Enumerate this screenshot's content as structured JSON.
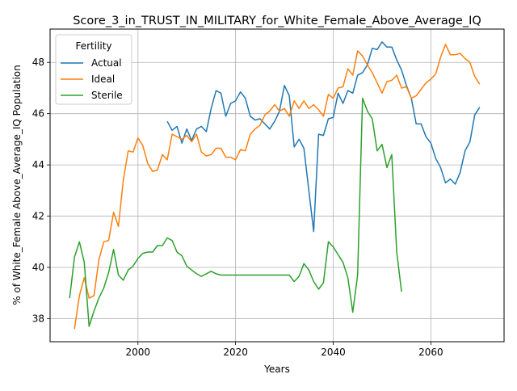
{
  "chart_data": {
    "type": "line",
    "title": "Score_3_in_TRUST_IN_MILITARY_for_White_Female_Above_Average_IQ",
    "xlabel": "Years",
    "ylabel": "% of White_Female Above_Average_IQ Population",
    "xlim": [
      1982,
      2075
    ],
    "ylim": [
      37.1,
      49.3
    ],
    "xticks": [
      2000,
      2020,
      2040,
      2060
    ],
    "yticks": [
      38,
      40,
      42,
      44,
      46,
      48
    ],
    "grid": true,
    "legend": {
      "title": "Fertility",
      "placement": "top-left"
    },
    "series": [
      {
        "name": "Actual",
        "color": "#1f77b4",
        "points": [
          [
            2006,
            45.7
          ],
          [
            2007,
            45.35
          ],
          [
            2008,
            45.5
          ],
          [
            2009,
            44.85
          ],
          [
            2010,
            45.4
          ],
          [
            2011,
            44.95
          ],
          [
            2012,
            45.4
          ],
          [
            2013,
            45.5
          ],
          [
            2014,
            45.3
          ],
          [
            2015,
            46.2
          ],
          [
            2016,
            46.9
          ],
          [
            2017,
            46.8
          ],
          [
            2018,
            45.9
          ],
          [
            2019,
            46.4
          ],
          [
            2020,
            46.5
          ],
          [
            2021,
            46.85
          ],
          [
            2022,
            46.6
          ],
          [
            2023,
            45.9
          ],
          [
            2024,
            45.75
          ],
          [
            2025,
            45.8
          ],
          [
            2026,
            45.6
          ],
          [
            2027,
            45.4
          ],
          [
            2028,
            45.7
          ],
          [
            2029,
            46.1
          ],
          [
            2030,
            47.1
          ],
          [
            2031,
            46.7
          ],
          [
            2032,
            44.7
          ],
          [
            2033,
            45.0
          ],
          [
            2034,
            44.65
          ],
          [
            2035,
            43.0
          ],
          [
            2036,
            41.4
          ],
          [
            2037,
            45.2
          ],
          [
            2038,
            45.15
          ],
          [
            2039,
            45.8
          ],
          [
            2040,
            45.85
          ],
          [
            2041,
            46.8
          ],
          [
            2042,
            46.4
          ],
          [
            2043,
            46.9
          ],
          [
            2044,
            46.8
          ],
          [
            2045,
            47.5
          ],
          [
            2046,
            47.6
          ],
          [
            2047,
            47.9
          ],
          [
            2048,
            48.55
          ],
          [
            2049,
            48.5
          ],
          [
            2050,
            48.8
          ],
          [
            2051,
            48.6
          ],
          [
            2052,
            48.6
          ],
          [
            2053,
            48.1
          ],
          [
            2054,
            47.7
          ],
          [
            2055,
            47.1
          ],
          [
            2056,
            46.6
          ],
          [
            2057,
            45.6
          ],
          [
            2058,
            45.6
          ],
          [
            2059,
            45.1
          ],
          [
            2060,
            44.85
          ],
          [
            2061,
            44.25
          ],
          [
            2062,
            43.9
          ],
          [
            2063,
            43.3
          ],
          [
            2064,
            43.45
          ],
          [
            2065,
            43.25
          ],
          [
            2066,
            43.7
          ],
          [
            2067,
            44.55
          ],
          [
            2068,
            44.9
          ],
          [
            2069,
            45.95
          ],
          [
            2070,
            46.25
          ]
        ]
      },
      {
        "name": "Ideal",
        "color": "#ff7f0e",
        "points": [
          [
            1987,
            37.6
          ],
          [
            1988,
            38.9
          ],
          [
            1989,
            39.6
          ],
          [
            1990,
            38.8
          ],
          [
            1991,
            38.9
          ],
          [
            1992,
            40.3
          ],
          [
            1993,
            41.0
          ],
          [
            1994,
            41.05
          ],
          [
            1995,
            42.15
          ],
          [
            1996,
            41.6
          ],
          [
            1997,
            43.4
          ],
          [
            1998,
            44.55
          ],
          [
            1999,
            44.5
          ],
          [
            2000,
            45.05
          ],
          [
            2001,
            44.75
          ],
          [
            2002,
            44.05
          ],
          [
            2003,
            43.75
          ],
          [
            2004,
            43.8
          ],
          [
            2005,
            44.4
          ],
          [
            2006,
            44.2
          ],
          [
            2007,
            45.2
          ],
          [
            2008,
            45.1
          ],
          [
            2009,
            45.0
          ],
          [
            2010,
            45.15
          ],
          [
            2011,
            44.9
          ],
          [
            2012,
            45.2
          ],
          [
            2013,
            44.5
          ],
          [
            2014,
            44.35
          ],
          [
            2015,
            44.4
          ],
          [
            2016,
            44.65
          ],
          [
            2017,
            44.65
          ],
          [
            2018,
            44.3
          ],
          [
            2019,
            44.3
          ],
          [
            2020,
            44.2
          ],
          [
            2021,
            44.6
          ],
          [
            2022,
            44.55
          ],
          [
            2023,
            45.2
          ],
          [
            2024,
            45.4
          ],
          [
            2025,
            45.55
          ],
          [
            2026,
            45.95
          ],
          [
            2027,
            46.1
          ],
          [
            2028,
            46.35
          ],
          [
            2029,
            46.1
          ],
          [
            2030,
            46.2
          ],
          [
            2031,
            45.9
          ],
          [
            2032,
            46.5
          ],
          [
            2033,
            46.2
          ],
          [
            2034,
            46.5
          ],
          [
            2035,
            46.2
          ],
          [
            2036,
            46.35
          ],
          [
            2037,
            46.15
          ],
          [
            2038,
            45.9
          ],
          [
            2039,
            46.75
          ],
          [
            2040,
            46.6
          ],
          [
            2041,
            47.0
          ],
          [
            2042,
            47.05
          ],
          [
            2043,
            47.75
          ],
          [
            2044,
            47.5
          ],
          [
            2045,
            48.45
          ],
          [
            2046,
            48.25
          ],
          [
            2047,
            47.9
          ],
          [
            2048,
            47.6
          ],
          [
            2049,
            47.2
          ],
          [
            2050,
            46.8
          ],
          [
            2051,
            47.25
          ],
          [
            2052,
            47.3
          ],
          [
            2053,
            47.5
          ],
          [
            2054,
            47.0
          ],
          [
            2055,
            47.05
          ],
          [
            2056,
            46.6
          ],
          [
            2057,
            46.7
          ],
          [
            2058,
            46.95
          ],
          [
            2059,
            47.2
          ],
          [
            2060,
            47.35
          ],
          [
            2061,
            47.55
          ],
          [
            2062,
            48.2
          ],
          [
            2063,
            48.7
          ],
          [
            2064,
            48.3
          ],
          [
            2065,
            48.3
          ],
          [
            2066,
            48.35
          ],
          [
            2067,
            48.15
          ],
          [
            2068,
            48.0
          ],
          [
            2069,
            47.45
          ],
          [
            2070,
            47.15
          ]
        ]
      },
      {
        "name": "Sterile",
        "color": "#2ca02c",
        "points": [
          [
            1986,
            38.8
          ],
          [
            1987,
            40.4
          ],
          [
            1988,
            41.0
          ],
          [
            1989,
            40.2
          ],
          [
            1990,
            37.7
          ],
          [
            1991,
            38.3
          ],
          [
            1992,
            38.8
          ],
          [
            1993,
            39.2
          ],
          [
            1994,
            39.8
          ],
          [
            1995,
            40.7
          ],
          [
            1996,
            39.7
          ],
          [
            1997,
            39.5
          ],
          [
            1998,
            39.9
          ],
          [
            1999,
            40.05
          ],
          [
            2000,
            40.35
          ],
          [
            2001,
            40.55
          ],
          [
            2002,
            40.6
          ],
          [
            2003,
            40.6
          ],
          [
            2004,
            40.85
          ],
          [
            2005,
            40.85
          ],
          [
            2006,
            41.15
          ],
          [
            2007,
            41.05
          ],
          [
            2008,
            40.6
          ],
          [
            2009,
            40.45
          ],
          [
            2010,
            40.05
          ],
          [
            2011,
            39.9
          ],
          [
            2012,
            39.75
          ],
          [
            2013,
            39.65
          ],
          [
            2014,
            39.75
          ],
          [
            2015,
            39.85
          ],
          [
            2016,
            39.75
          ],
          [
            2017,
            39.7
          ],
          [
            2018,
            39.7
          ],
          [
            2019,
            39.7
          ],
          [
            2020,
            39.7
          ],
          [
            2025,
            39.7
          ],
          [
            2030,
            39.7
          ],
          [
            2031,
            39.7
          ],
          [
            2032,
            39.45
          ],
          [
            2033,
            39.65
          ],
          [
            2034,
            40.15
          ],
          [
            2035,
            39.9
          ],
          [
            2036,
            39.45
          ],
          [
            2037,
            39.15
          ],
          [
            2038,
            39.4
          ],
          [
            2039,
            41.0
          ],
          [
            2040,
            40.8
          ],
          [
            2041,
            40.5
          ],
          [
            2042,
            40.2
          ],
          [
            2043,
            39.6
          ],
          [
            2044,
            38.25
          ],
          [
            2045,
            39.7
          ],
          [
            2046,
            46.6
          ],
          [
            2047,
            46.1
          ],
          [
            2048,
            45.8
          ],
          [
            2049,
            44.55
          ],
          [
            2050,
            44.8
          ],
          [
            2051,
            43.9
          ],
          [
            2052,
            44.4
          ],
          [
            2053,
            40.6
          ],
          [
            2054,
            39.05
          ]
        ]
      }
    ]
  }
}
